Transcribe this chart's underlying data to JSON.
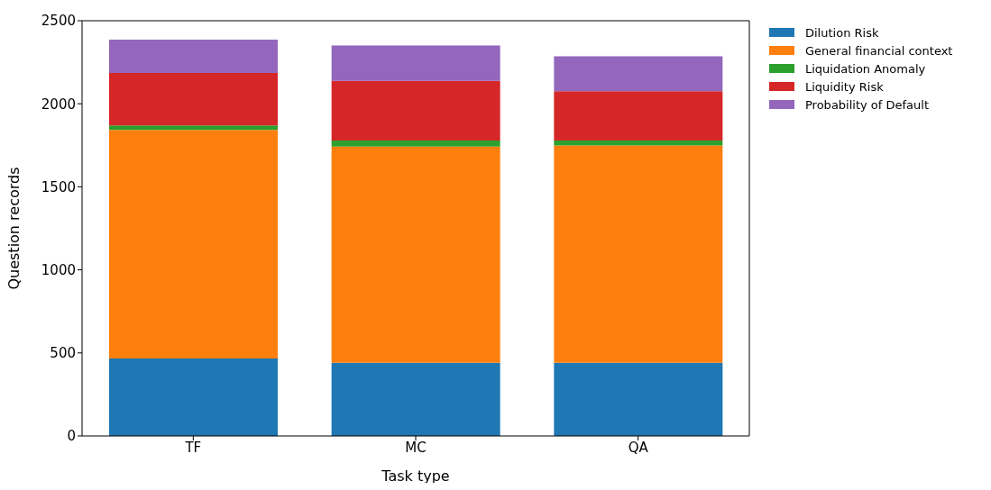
{
  "chart_data": {
    "type": "bar",
    "stacked": true,
    "xlabel": "Task type",
    "ylabel": "Question records",
    "categories": [
      "TF",
      "MC",
      "QA"
    ],
    "series": [
      {
        "name": "Dilution Risk",
        "color": "#1f77b4",
        "values": [
          466,
          440,
          440
        ]
      },
      {
        "name": "General financial context",
        "color": "#ff7f0e",
        "values": [
          1377,
          1302,
          1309
        ]
      },
      {
        "name": "Liquidation Anomaly",
        "color": "#2ca02c",
        "values": [
          27,
          37,
          30
        ]
      },
      {
        "name": "Liquidity Risk",
        "color": "#d62728",
        "values": [
          315,
          359,
          297
        ]
      },
      {
        "name": "Probability of Default",
        "color": "#9467bd",
        "values": [
          201,
          213,
          210
        ]
      }
    ],
    "ylim": [
      0,
      2500
    ],
    "yticks": [
      0,
      500,
      1000,
      1500,
      2000,
      2500
    ],
    "legend": "top right"
  }
}
